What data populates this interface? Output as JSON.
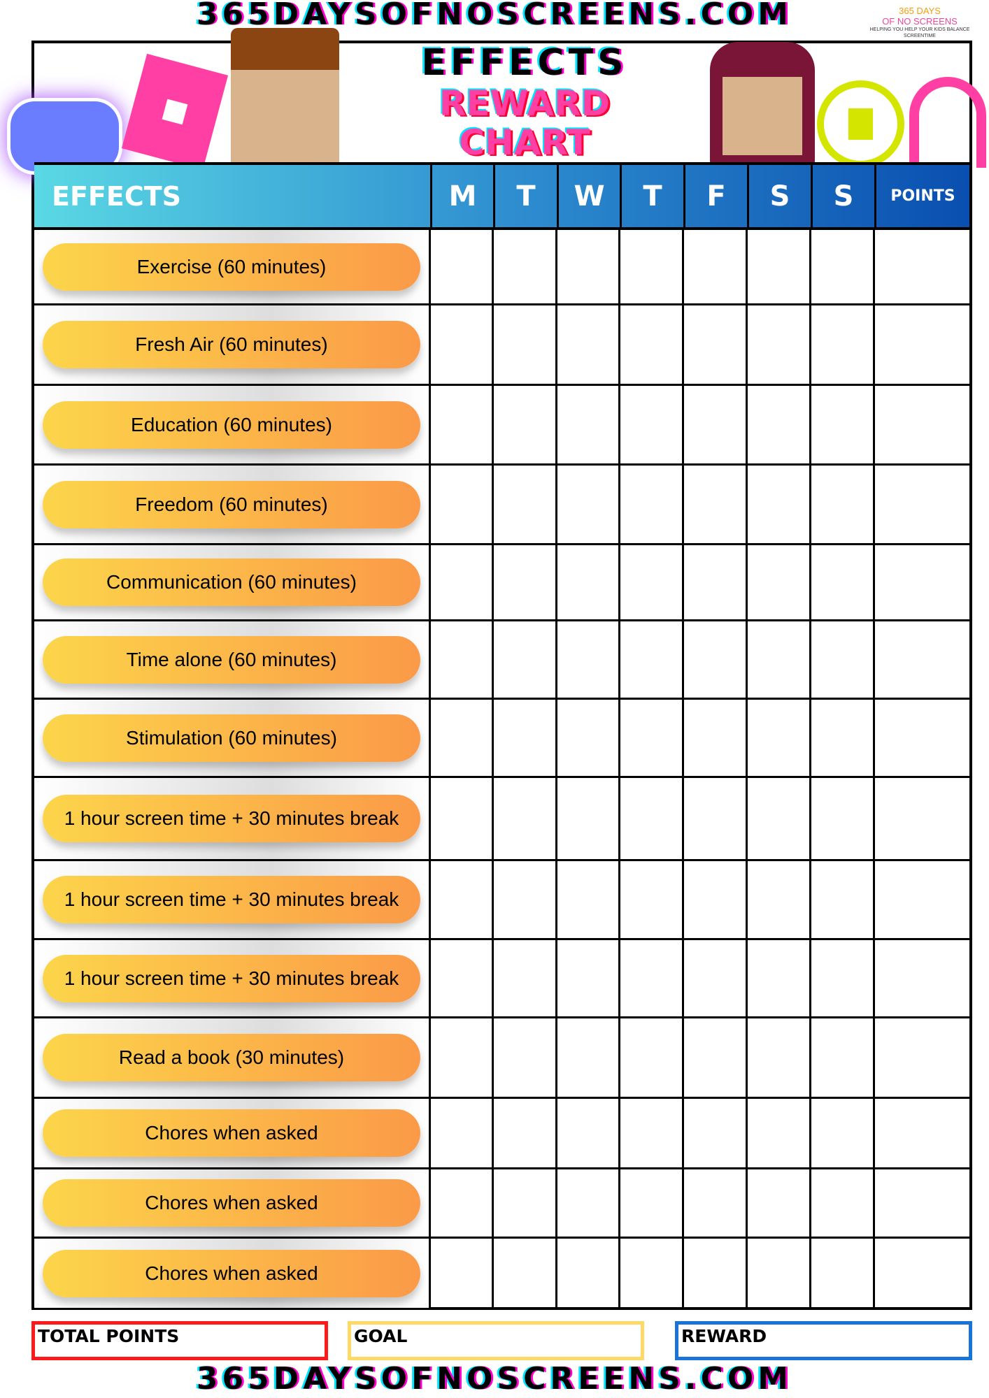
{
  "site_url_top": "365DAYSOFNOSCREENS.COM",
  "site_url_bottom": "365DAYSOFNOSCREENS.COM",
  "logo": {
    "line1": "365 DAYS",
    "line2": "OF NO SCREENS",
    "tagline": "HELPING YOU HELP YOUR KIDS BALANCE SCREENTIME"
  },
  "title": {
    "line1": "EFFECTS",
    "line2": "REWARD",
    "line3": "CHART"
  },
  "header": {
    "effects": "EFFECTS",
    "days": [
      "M",
      "T",
      "W",
      "T",
      "F",
      "S",
      "S"
    ],
    "points": "POINTS"
  },
  "rows": [
    {
      "label": "Exercise (60 minutes)"
    },
    {
      "label": "Fresh Air (60 minutes)"
    },
    {
      "label": "Education (60 minutes)"
    },
    {
      "label": "Freedom (60 minutes)"
    },
    {
      "label": "Communication (60 minutes)"
    },
    {
      "label": "Time alone (60 minutes)"
    },
    {
      "label": "Stimulation (60 minutes)"
    },
    {
      "label": "1 hour screen time + 30 minutes break"
    },
    {
      "label": "1 hour screen time + 30 minutes break"
    },
    {
      "label": "1 hour screen time + 30 minutes break"
    },
    {
      "label": "Read a book (30 minutes)"
    },
    {
      "label": "Chores when asked"
    },
    {
      "label": "Chores when asked"
    },
    {
      "label": "Chores when asked"
    }
  ],
  "footer": {
    "total_points": "TOTAL POINTS",
    "goal": "GOAL",
    "reward": "REWARD"
  },
  "colors": {
    "total_border": "#ff1a1a",
    "goal_border": "#ffd966",
    "reward_border": "#1a73d9",
    "pill_start": "#fcd54a",
    "pill_end": "#fb9a48"
  }
}
